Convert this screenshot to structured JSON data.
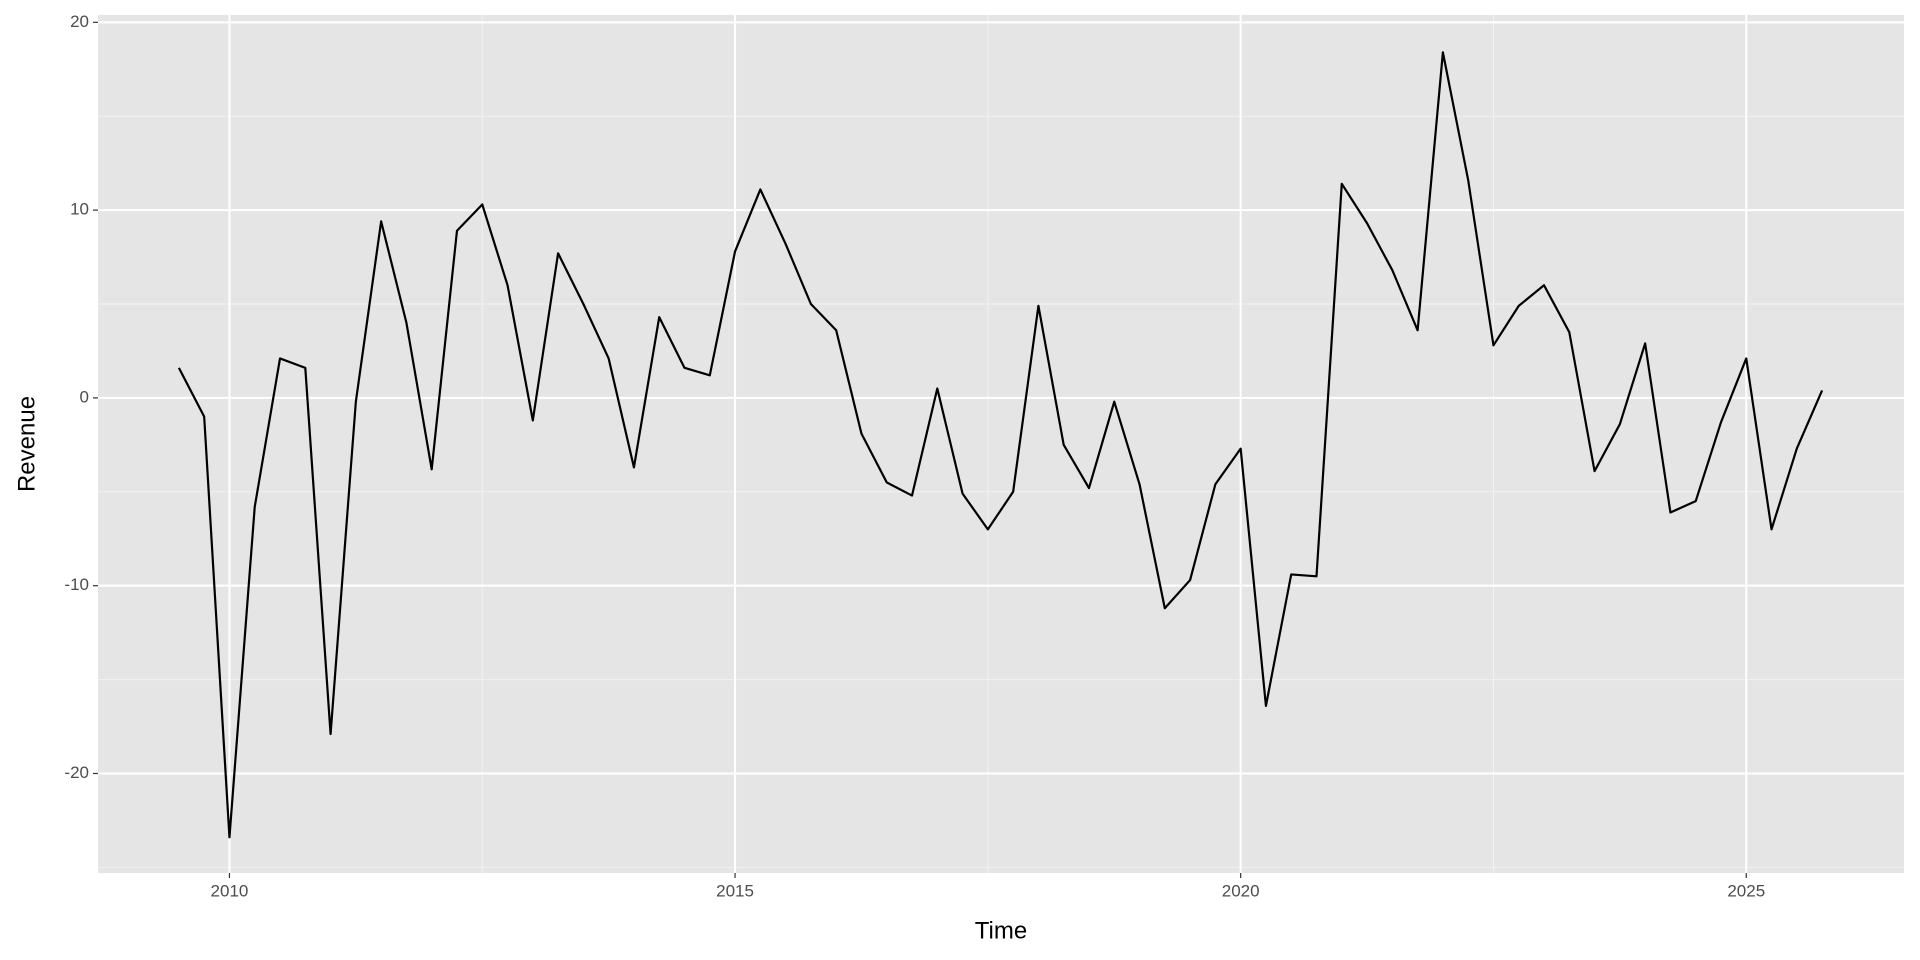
{
  "chart_data": {
    "type": "line",
    "xlabel": "Time",
    "ylabel": "Revenue",
    "x": [
      2009.5,
      2009.75,
      2010,
      2010.25,
      2010.5,
      2010.75,
      2011,
      2011.25,
      2011.5,
      2011.75,
      2012,
      2012.25,
      2012.5,
      2012.75,
      2013,
      2013.25,
      2013.5,
      2013.75,
      2014,
      2014.25,
      2014.5,
      2014.75,
      2015,
      2015.25,
      2015.5,
      2015.75,
      2016,
      2016.25,
      2016.5,
      2016.75,
      2017,
      2017.25,
      2017.5,
      2017.75,
      2018,
      2018.25,
      2018.5,
      2018.75,
      2019,
      2019.25,
      2019.5,
      2019.75,
      2020,
      2020.25,
      2020.5,
      2020.75,
      2021,
      2021.25,
      2021.5,
      2021.75,
      2022,
      2022.25,
      2022.5,
      2022.75,
      2023,
      2023.25,
      2023.5,
      2023.75,
      2024,
      2024.25,
      2024.5,
      2024.75,
      2025,
      2025.25,
      2025.5,
      2025.75
    ],
    "series": [
      {
        "color": "#000000",
        "values": [
          1.6,
          -1.0,
          -23.4,
          -5.8,
          2.1,
          1.6,
          -17.9,
          -0.2,
          9.4,
          4.0,
          -3.8,
          8.9,
          10.3,
          6.0,
          -1.2,
          7.7,
          5.0,
          2.1,
          -3.7,
          4.3,
          1.6,
          1.2,
          7.8,
          11.1,
          8.2,
          5.0,
          3.6,
          -1.9,
          -4.5,
          -5.2,
          0.5,
          -5.1,
          -7.0,
          -5.0,
          4.9,
          -2.5,
          -4.8,
          -0.2,
          -4.6,
          -11.2,
          -9.7,
          -4.6,
          -2.7,
          -16.4,
          -9.4,
          -9.5,
          11.4,
          9.3,
          6.8,
          3.6,
          18.4,
          11.6,
          2.8,
          4.9,
          6.0,
          3.5,
          -3.9,
          -1.4,
          2.9,
          -6.1,
          -5.5,
          -1.3,
          2.1,
          -7.0,
          -2.7,
          0.4
        ]
      }
    ],
    "xlim": [
      2008.7,
      2026.56
    ],
    "xticks": [
      2010,
      2015,
      2020,
      2025
    ],
    "ylim": [
      -25.3,
      20.39
    ],
    "yticks": [
      -20,
      -10,
      0,
      10,
      20
    ],
    "grid": true,
    "minor_grid": true,
    "panel_color": "#e5e5e5"
  }
}
